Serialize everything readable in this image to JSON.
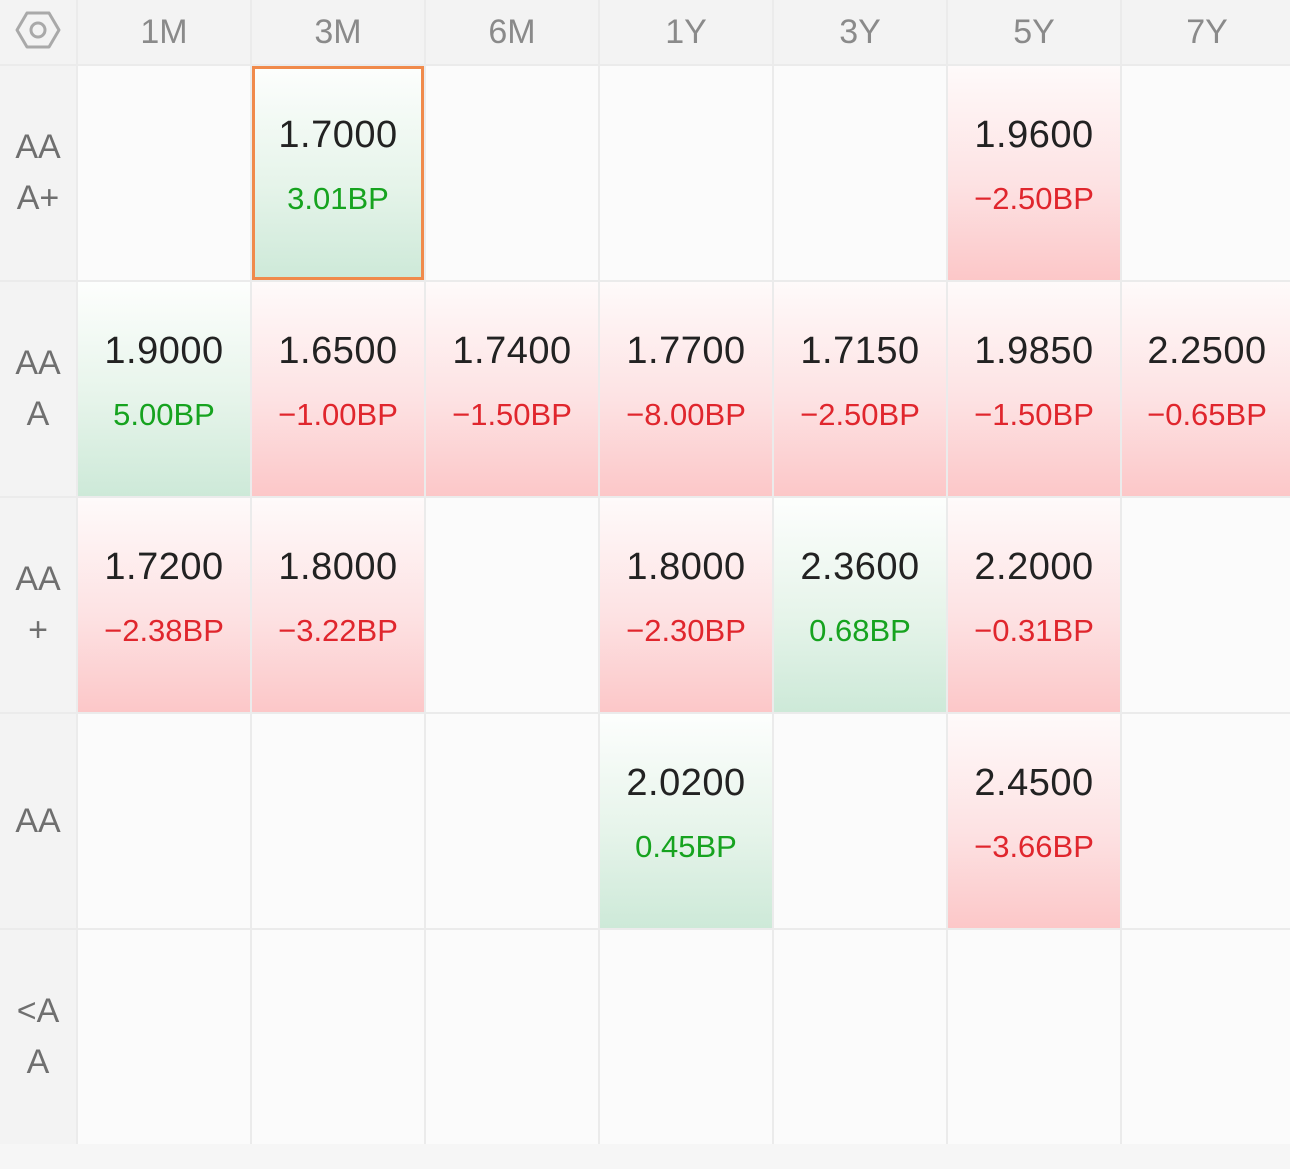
{
  "settings_icon": "hexagon-gear-icon",
  "colors": {
    "up": "#16a31f",
    "down": "#e0262d",
    "selected_outline": "#f08a4b"
  },
  "columns": [
    "1M",
    "3M",
    "6M",
    "1Y",
    "3Y",
    "5Y",
    "7Y"
  ],
  "rows": [
    {
      "label": "AAA+",
      "cells": [
        null,
        {
          "rate": "1.7000",
          "change": "3.01BP",
          "direction": "up",
          "selected": true
        },
        null,
        null,
        null,
        {
          "rate": "1.9600",
          "change": "−2.50BP",
          "direction": "down"
        },
        null
      ]
    },
    {
      "label": "AAA",
      "cells": [
        {
          "rate": "1.9000",
          "change": "5.00BP",
          "direction": "up"
        },
        {
          "rate": "1.6500",
          "change": "−1.00BP",
          "direction": "down"
        },
        {
          "rate": "1.7400",
          "change": "−1.50BP",
          "direction": "down"
        },
        {
          "rate": "1.7700",
          "change": "−8.00BP",
          "direction": "down"
        },
        {
          "rate": "1.7150",
          "change": "−2.50BP",
          "direction": "down"
        },
        {
          "rate": "1.9850",
          "change": "−1.50BP",
          "direction": "down"
        },
        {
          "rate": "2.2500",
          "change": "−0.65BP",
          "direction": "down"
        }
      ]
    },
    {
      "label": "AA+",
      "cells": [
        {
          "rate": "1.7200",
          "change": "−2.38BP",
          "direction": "down"
        },
        {
          "rate": "1.8000",
          "change": "−3.22BP",
          "direction": "down"
        },
        null,
        {
          "rate": "1.8000",
          "change": "−2.30BP",
          "direction": "down"
        },
        {
          "rate": "2.3600",
          "change": "0.68BP",
          "direction": "up"
        },
        {
          "rate": "2.2000",
          "change": "−0.31BP",
          "direction": "down"
        },
        null
      ]
    },
    {
      "label": "AA",
      "cells": [
        null,
        null,
        null,
        {
          "rate": "2.0200",
          "change": "0.45BP",
          "direction": "up"
        },
        null,
        {
          "rate": "2.4500",
          "change": "−3.66BP",
          "direction": "down"
        },
        null
      ]
    },
    {
      "label": "<AA",
      "cells": [
        null,
        null,
        null,
        null,
        null,
        null,
        null
      ]
    }
  ]
}
